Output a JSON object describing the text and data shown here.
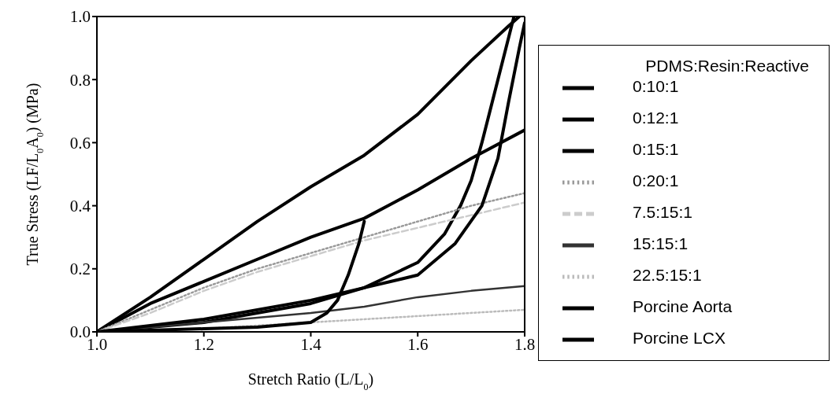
{
  "chart_data": {
    "type": "line",
    "xlabel": "Stretch Ratio (L/L$_{0}$)",
    "ylabel": "True Stress (LF/L$_{0}$A$_{0}$) (MPa)",
    "legend_title": "PDMS:Resin:Reactive",
    "legend": "right",
    "grid": false,
    "marker": "none",
    "xlim": [
      1,
      1.8
    ],
    "ylim": [
      0,
      1
    ],
    "xticks": [
      {
        "value": 1,
        "label": "1.0"
      },
      {
        "value": 1.2,
        "label": "1.2"
      },
      {
        "value": 1.4,
        "label": "1.4"
      },
      {
        "value": 1.6,
        "label": "1.6"
      },
      {
        "value": 1.8,
        "label": "1.8"
      }
    ],
    "yticks": [
      {
        "value": 0,
        "label": "0.0"
      },
      {
        "value": 0.2,
        "label": "0.2"
      },
      {
        "value": 0.4,
        "label": "0.4"
      },
      {
        "value": 0.6,
        "label": "0.6"
      },
      {
        "value": 0.8,
        "label": "0.8"
      },
      {
        "value": 1,
        "label": "1.0"
      }
    ],
    "series": [
      {
        "name": "0:10:1",
        "color": "#000000",
        "x": [
          1,
          1.1,
          1.2,
          1.3,
          1.4,
          1.5,
          1.6,
          1.7,
          1.77,
          1.79
        ],
        "values": [
          0,
          0.11,
          0.23,
          0.35,
          0.46,
          0.56,
          0.69,
          0.86,
          0.97,
          1
        ]
      },
      {
        "name": "0:12:1",
        "color": "#000000",
        "x": [
          1,
          1.1,
          1.2,
          1.3,
          1.4,
          1.5,
          1.6,
          1.7,
          1.8
        ],
        "values": [
          0,
          0.09,
          0.16,
          0.23,
          0.3,
          0.36,
          0.45,
          0.55,
          0.64
        ]
      },
      {
        "name": "0:15:1",
        "color": "#000000",
        "x": [
          1,
          1.2,
          1.4,
          1.5,
          1.6,
          1.65,
          1.68,
          1.7,
          1.72,
          1.75,
          1.78
        ],
        "values": [
          0,
          0.03,
          0.09,
          0.14,
          0.22,
          0.31,
          0.4,
          0.48,
          0.6,
          0.8,
          1
        ]
      },
      {
        "name": "0:20:1",
        "color": "#999999",
        "line_style": "dotted",
        "x": [
          1,
          1.1,
          1.2,
          1.3,
          1.4,
          1.5,
          1.6,
          1.7,
          1.8
        ],
        "values": [
          0,
          0.07,
          0.14,
          0.2,
          0.25,
          0.3,
          0.35,
          0.4,
          0.44
        ]
      },
      {
        "name": "7.5:15:1",
        "color": "#cccccc",
        "line_style": "dashed",
        "x": [
          1,
          1.1,
          1.2,
          1.3,
          1.4,
          1.5,
          1.6,
          1.7,
          1.8
        ],
        "values": [
          0,
          0.06,
          0.13,
          0.19,
          0.24,
          0.29,
          0.33,
          0.37,
          0.41
        ]
      },
      {
        "name": "15:15:1",
        "color": "#333333",
        "x": [
          1,
          1.2,
          1.4,
          1.5,
          1.6,
          1.7,
          1.8
        ],
        "values": [
          0,
          0.03,
          0.06,
          0.08,
          0.11,
          0.13,
          0.145
        ]
      },
      {
        "name": "22.5:15:1",
        "color": "#bbbbbb",
        "line_style": "dotted",
        "x": [
          1,
          1.2,
          1.4,
          1.6,
          1.8
        ],
        "values": [
          0,
          0.01,
          0.03,
          0.05,
          0.07
        ]
      },
      {
        "name": "Porcine Aorta",
        "color": "#000000",
        "x": [
          1,
          1.2,
          1.3,
          1.4,
          1.43,
          1.45,
          1.47,
          1.49,
          1.5
        ],
        "values": [
          0,
          0.01,
          0.015,
          0.03,
          0.06,
          0.1,
          0.18,
          0.28,
          0.35
        ]
      },
      {
        "name": "Porcine LCX",
        "color": "#000000",
        "x": [
          1,
          1.2,
          1.4,
          1.5,
          1.6,
          1.67,
          1.72,
          1.75,
          1.77,
          1.79,
          1.8
        ],
        "values": [
          0,
          0.04,
          0.1,
          0.14,
          0.18,
          0.28,
          0.4,
          0.55,
          0.73,
          0.9,
          0.98
        ]
      }
    ]
  }
}
